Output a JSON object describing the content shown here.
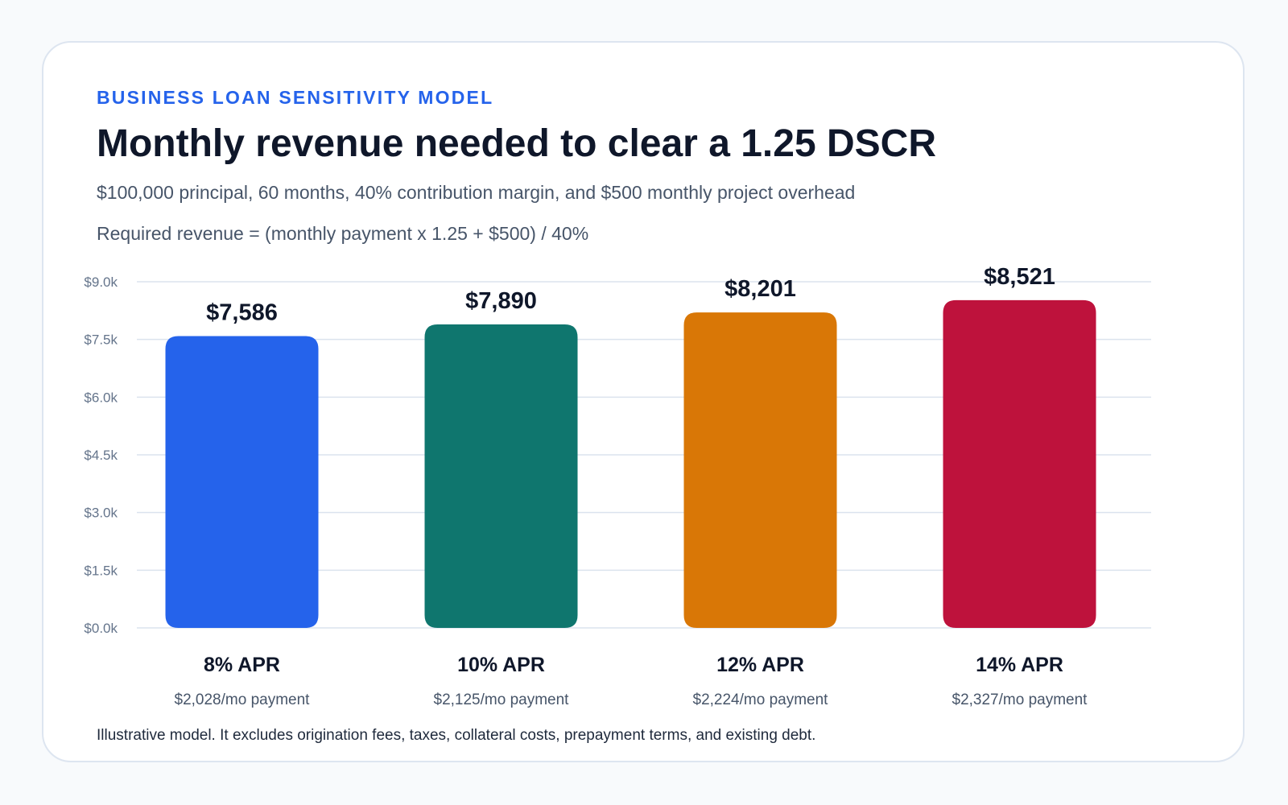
{
  "header": {
    "eyebrow": "BUSINESS LOAN SENSITIVITY MODEL",
    "title": "Monthly revenue needed to clear a 1.25 DSCR",
    "subtitle": "$100,000 principal, 60 months, 40% contribution margin, and $500 monthly project overhead",
    "formula": "Required revenue = (monthly payment x 1.25 + $500) / 40%"
  },
  "footnote": "Illustrative model. It excludes origination fees, taxes, collateral costs, prepayment terms, and existing debt.",
  "chart_data": {
    "type": "bar",
    "categories": [
      "8% APR",
      "10% APR",
      "12% APR",
      "14% APR"
    ],
    "values": [
      7586,
      7890,
      8201,
      8521
    ],
    "value_labels": [
      "$7,586",
      "$7,890",
      "$8,201",
      "$8,521"
    ],
    "payment_labels": [
      "$2,028/mo payment",
      "$2,125/mo payment",
      "$2,224/mo payment",
      "$2,327/mo payment"
    ],
    "colors": [
      "#2563eb",
      "#0f766e",
      "#d97706",
      "#be123c"
    ],
    "ylim": [
      0,
      9000
    ],
    "yticks": [
      0,
      1500,
      3000,
      4500,
      6000,
      7500,
      9000
    ],
    "ytick_labels": [
      "$0.0k",
      "$1.5k",
      "$3.0k",
      "$4.5k",
      "$6.0k",
      "$7.5k",
      "$9.0k"
    ],
    "grid": true,
    "grid_color": "#dbe3ee"
  }
}
